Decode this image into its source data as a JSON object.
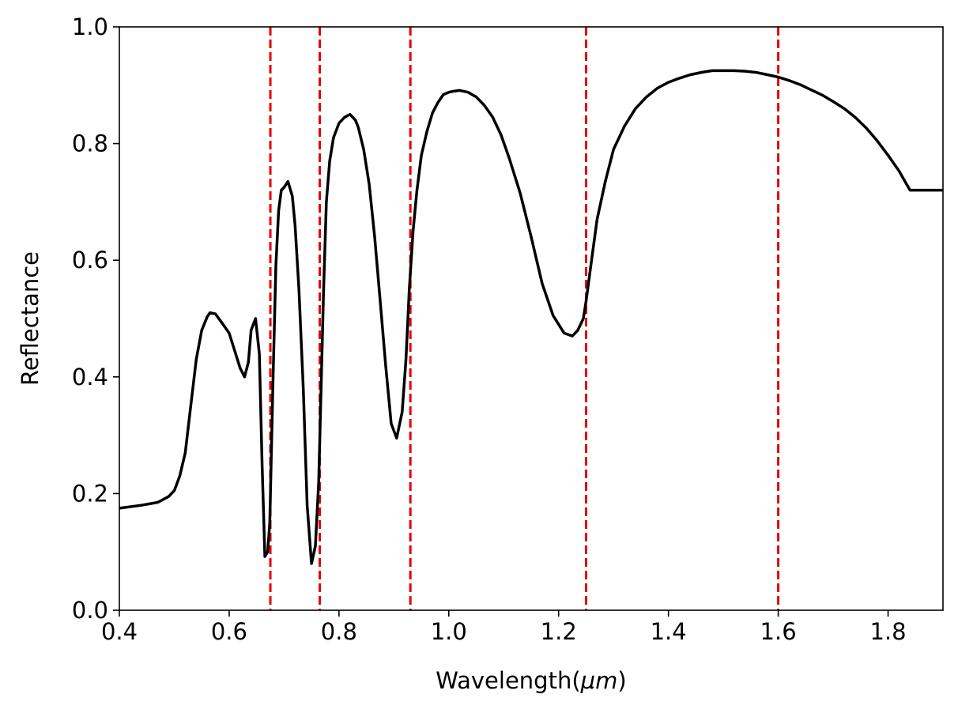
{
  "chart_data": {
    "type": "line",
    "title": "",
    "xlabel": "Wavelength(",
    "xlabel_unit": "μm",
    "xlabel_close": ")",
    "ylabel": "Reflectance",
    "xlim": [
      0.4,
      1.9
    ],
    "ylim": [
      0.0,
      1.0
    ],
    "grid": false,
    "xticks": [
      0.4,
      0.6,
      0.8,
      1.0,
      1.2,
      1.4,
      1.6,
      1.8
    ],
    "xtick_labels": [
      "0.4",
      "0.6",
      "0.8",
      "1.0",
      "1.2",
      "1.4",
      "1.6",
      "1.8"
    ],
    "yticks": [
      0.0,
      0.2,
      0.4,
      0.6,
      0.8,
      1.0
    ],
    "ytick_labels": [
      "0.0",
      "0.2",
      "0.4",
      "0.6",
      "0.8",
      "1.0"
    ],
    "series": [
      {
        "color": "#000000",
        "x": [
          0.4,
          0.44,
          0.47,
          0.49,
          0.5,
          0.51,
          0.52,
          0.53,
          0.54,
          0.55,
          0.56,
          0.565,
          0.575,
          0.585,
          0.6,
          0.61,
          0.62,
          0.628,
          0.635,
          0.64,
          0.648,
          0.655,
          0.66,
          0.665,
          0.67,
          0.674,
          0.68,
          0.685,
          0.69,
          0.695,
          0.7,
          0.707,
          0.715,
          0.72,
          0.727,
          0.735,
          0.742,
          0.75,
          0.757,
          0.763,
          0.768,
          0.772,
          0.777,
          0.783,
          0.79,
          0.8,
          0.81,
          0.82,
          0.83,
          0.835,
          0.845,
          0.855,
          0.865,
          0.875,
          0.885,
          0.895,
          0.905,
          0.915,
          0.922,
          0.928,
          0.935,
          0.942,
          0.95,
          0.96,
          0.97,
          0.98,
          0.99,
          1.0,
          1.01,
          1.02,
          1.035,
          1.05,
          1.065,
          1.08,
          1.095,
          1.11,
          1.13,
          1.15,
          1.17,
          1.19,
          1.21,
          1.225,
          1.235,
          1.245,
          1.25,
          1.26,
          1.27,
          1.285,
          1.3,
          1.32,
          1.34,
          1.36,
          1.38,
          1.4,
          1.42,
          1.44,
          1.46,
          1.48,
          1.5,
          1.52,
          1.54,
          1.56,
          1.58,
          1.6,
          1.62,
          1.64,
          1.66,
          1.68,
          1.7,
          1.72,
          1.74,
          1.76,
          1.78,
          1.8,
          1.82,
          1.84,
          1.86,
          1.88,
          1.9
        ],
        "y": [
          0.175,
          0.18,
          0.185,
          0.195,
          0.205,
          0.23,
          0.27,
          0.35,
          0.43,
          0.48,
          0.503,
          0.51,
          0.508,
          0.495,
          0.475,
          0.445,
          0.415,
          0.4,
          0.425,
          0.48,
          0.5,
          0.44,
          0.25,
          0.092,
          0.1,
          0.15,
          0.4,
          0.59,
          0.685,
          0.72,
          0.725,
          0.735,
          0.71,
          0.66,
          0.55,
          0.38,
          0.18,
          0.08,
          0.11,
          0.22,
          0.4,
          0.55,
          0.7,
          0.77,
          0.81,
          0.835,
          0.845,
          0.85,
          0.84,
          0.828,
          0.79,
          0.73,
          0.64,
          0.53,
          0.42,
          0.32,
          0.295,
          0.34,
          0.43,
          0.55,
          0.65,
          0.72,
          0.78,
          0.82,
          0.852,
          0.87,
          0.884,
          0.888,
          0.89,
          0.891,
          0.888,
          0.88,
          0.865,
          0.845,
          0.815,
          0.775,
          0.715,
          0.64,
          0.56,
          0.505,
          0.475,
          0.47,
          0.48,
          0.5,
          0.53,
          0.6,
          0.67,
          0.735,
          0.79,
          0.83,
          0.86,
          0.88,
          0.895,
          0.905,
          0.912,
          0.918,
          0.922,
          0.925,
          0.925,
          0.925,
          0.924,
          0.922,
          0.918,
          0.914,
          0.908,
          0.901,
          0.892,
          0.883,
          0.872,
          0.86,
          0.845,
          0.827,
          0.805,
          0.78,
          0.753,
          0.72,
          0.72,
          0.72,
          0.72
        ],
        "width": 3.5
      }
    ],
    "vlines": [
      {
        "x": 0.675,
        "color": "#e50000",
        "style": "dashed"
      },
      {
        "x": 0.765,
        "color": "#e50000",
        "style": "dashed"
      },
      {
        "x": 0.93,
        "color": "#e50000",
        "style": "dashed"
      },
      {
        "x": 1.25,
        "color": "#e50000",
        "style": "dashed"
      },
      {
        "x": 1.6,
        "color": "#e50000",
        "style": "dashed"
      }
    ]
  }
}
